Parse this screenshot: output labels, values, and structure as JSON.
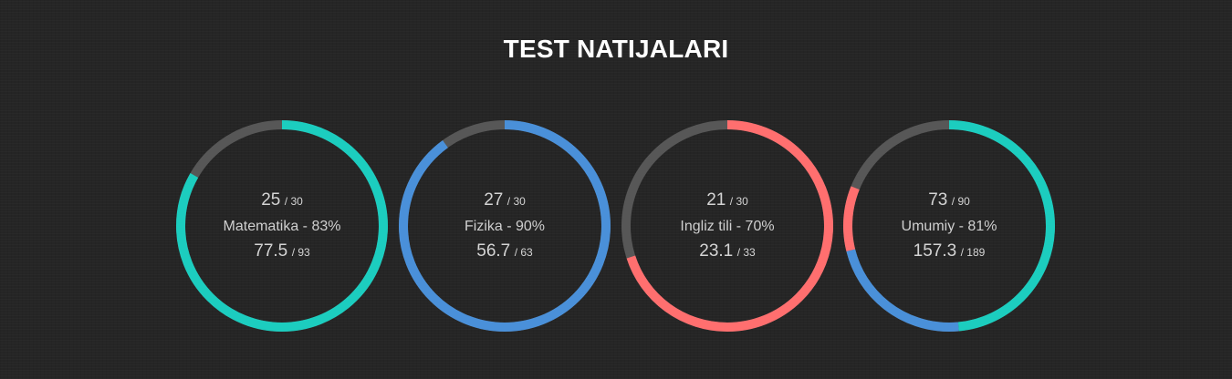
{
  "page": {
    "title": "TEST NATIJALARI"
  },
  "colors": {
    "track": "#575757",
    "teal": "#1ccdbf",
    "blue": "#4a90d9",
    "red": "#ff6f6f"
  },
  "cards": [
    {
      "correct": "25",
      "total": "/ 30",
      "label": "Matematika - 83%",
      "score": "77.5",
      "max": "/ 93",
      "fraction": 0.833,
      "segments": [
        {
          "color": "teal",
          "fraction": 0.833
        }
      ]
    },
    {
      "correct": "27",
      "total": "/ 30",
      "label": "Fizika - 90%",
      "score": "56.7",
      "max": "/ 63",
      "fraction": 0.9,
      "segments": [
        {
          "color": "blue",
          "fraction": 0.9
        }
      ]
    },
    {
      "correct": "21",
      "total": "/ 30",
      "label": "Ingliz tili - 70%",
      "score": "23.1",
      "max": "/ 33",
      "fraction": 0.7,
      "segments": [
        {
          "color": "red",
          "fraction": 0.7
        }
      ]
    },
    {
      "correct": "73",
      "total": "/ 90",
      "label": "Umumiy - 81%",
      "score": "157.3",
      "max": "/ 189",
      "fraction": 0.811,
      "segments": [
        {
          "color": "teal",
          "fraction": 0.485
        },
        {
          "color": "blue",
          "fraction": 0.226
        },
        {
          "color": "red",
          "fraction": 0.1
        }
      ]
    }
  ]
}
